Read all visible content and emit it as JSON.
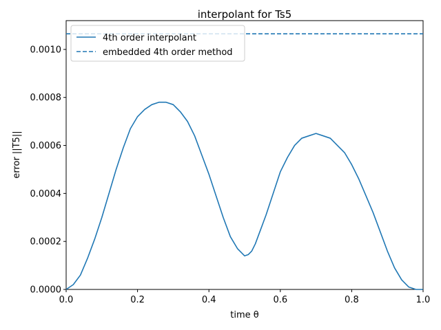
{
  "chart_data": {
    "type": "line",
    "title": "interpolant for Ts5",
    "xlabel": "time θ",
    "ylabel": "error ||T5||",
    "xlim": [
      0.0,
      1.0
    ],
    "ylim": [
      0.0,
      0.00112
    ],
    "xticks": [
      0.0,
      0.2,
      0.4,
      0.6,
      0.8,
      1.0
    ],
    "xtick_labels": [
      "0.0",
      "0.2",
      "0.4",
      "0.6",
      "0.8",
      "1.0"
    ],
    "yticks": [
      0.0,
      0.0002,
      0.0004,
      0.0006,
      0.0008,
      0.001
    ],
    "ytick_labels": [
      "0.0000",
      "0.0002",
      "0.0004",
      "0.0006",
      "0.0008",
      "0.0010"
    ],
    "grid": false,
    "legend_position": "top-left",
    "color": "#1f77b4",
    "series": [
      {
        "name": "4th order interpolant",
        "style": "solid",
        "x": [
          0.0,
          0.02,
          0.04,
          0.06,
          0.08,
          0.1,
          0.12,
          0.14,
          0.16,
          0.18,
          0.2,
          0.22,
          0.24,
          0.26,
          0.28,
          0.3,
          0.32,
          0.34,
          0.36,
          0.38,
          0.4,
          0.42,
          0.44,
          0.46,
          0.48,
          0.5,
          0.51,
          0.52,
          0.53,
          0.54,
          0.56,
          0.58,
          0.6,
          0.62,
          0.64,
          0.66,
          0.68,
          0.7,
          0.72,
          0.74,
          0.76,
          0.78,
          0.8,
          0.82,
          0.84,
          0.86,
          0.88,
          0.9,
          0.92,
          0.94,
          0.96,
          0.98,
          1.0
        ],
        "y": [
          0.0,
          2e-05,
          6e-05,
          0.00013,
          0.00021,
          0.0003,
          0.0004,
          0.0005,
          0.00059,
          0.00067,
          0.00072,
          0.00075,
          0.00077,
          0.00078,
          0.00078,
          0.00077,
          0.00074,
          0.0007,
          0.00064,
          0.00056,
          0.00048,
          0.00039,
          0.0003,
          0.00022,
          0.00017,
          0.00014,
          0.000145,
          0.00016,
          0.00019,
          0.00023,
          0.00031,
          0.0004,
          0.00049,
          0.00055,
          0.0006,
          0.00063,
          0.00064,
          0.00065,
          0.00064,
          0.00063,
          0.0006,
          0.00057,
          0.00052,
          0.00046,
          0.00039,
          0.00032,
          0.00024,
          0.00016,
          9e-05,
          4e-05,
          1e-05,
          0.0,
          0.0
        ]
      },
      {
        "name": "embedded 4th order method",
        "style": "dashed",
        "x": [
          0.0,
          1.0
        ],
        "y": [
          0.001065,
          0.001065
        ]
      }
    ]
  }
}
